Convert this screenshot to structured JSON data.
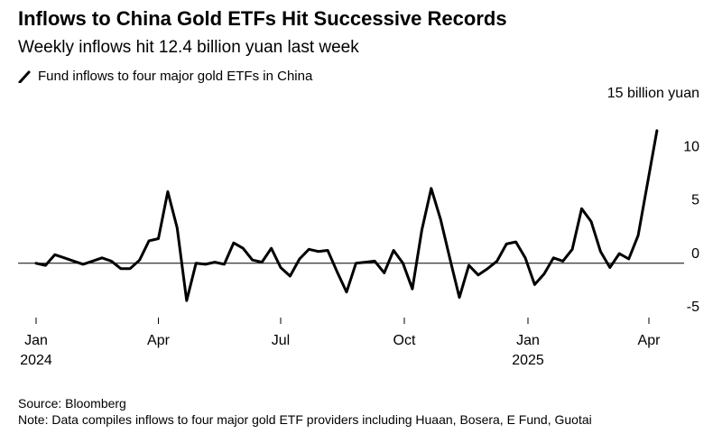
{
  "title": "Inflows to China Gold ETFs Hit Successive Records",
  "subtitle": "Weekly inflows hit 12.4 billion yuan last week",
  "legend": {
    "label": "Fund inflows to four major gold ETFs in China"
  },
  "footer": {
    "source": "Source: Bloomberg",
    "note": "Note: Data compiles inflows to four major gold ETF providers including Huaan, Bosera, E Fund, Guotai"
  },
  "chart_data": {
    "type": "line",
    "title": "Inflows to China Gold ETFs Hit Successive Records",
    "subtitle": "Weekly inflows hit 12.4 billion yuan last week",
    "ylabel": "",
    "y_unit_label": "15 billion yuan",
    "ylim": [
      -5,
      15
    ],
    "y_ticks": [
      15,
      10,
      5,
      0,
      -5
    ],
    "y_tick_labels": [
      "15 billion yuan",
      "10",
      "5",
      "0",
      "-5"
    ],
    "x_ticks": [
      {
        "date": "2024-01-01",
        "label": "Jan",
        "sublabel": "2024"
      },
      {
        "date": "2024-04-01",
        "label": "Apr",
        "sublabel": ""
      },
      {
        "date": "2024-07-01",
        "label": "Jul",
        "sublabel": ""
      },
      {
        "date": "2024-10-01",
        "label": "Oct",
        "sublabel": ""
      },
      {
        "date": "2025-01-01",
        "label": "Jan",
        "sublabel": "2025"
      },
      {
        "date": "2025-04-01",
        "label": "Apr",
        "sublabel": ""
      }
    ],
    "grid": false,
    "zero_line": true,
    "line_color": "#000000",
    "series": [
      {
        "name": "Fund inflows to four major gold ETFs in China",
        "points": [
          {
            "x": "2024-01-01",
            "y": 0.0
          },
          {
            "x": "2024-01-08",
            "y": -0.2
          },
          {
            "x": "2024-01-15",
            "y": 0.8
          },
          {
            "x": "2024-01-22",
            "y": 0.5
          },
          {
            "x": "2024-01-29",
            "y": 0.2
          },
          {
            "x": "2024-02-05",
            "y": -0.1
          },
          {
            "x": "2024-02-12",
            "y": 0.2
          },
          {
            "x": "2024-02-19",
            "y": 0.5
          },
          {
            "x": "2024-02-26",
            "y": 0.2
          },
          {
            "x": "2024-03-04",
            "y": -0.5
          },
          {
            "x": "2024-03-11",
            "y": -0.5
          },
          {
            "x": "2024-03-18",
            "y": 0.3
          },
          {
            "x": "2024-03-25",
            "y": 2.1
          },
          {
            "x": "2024-04-01",
            "y": 2.3
          },
          {
            "x": "2024-04-08",
            "y": 6.7
          },
          {
            "x": "2024-04-15",
            "y": 3.3
          },
          {
            "x": "2024-04-22",
            "y": -3.5
          },
          {
            "x": "2024-04-29",
            "y": 0.0
          },
          {
            "x": "2024-05-06",
            "y": -0.1
          },
          {
            "x": "2024-05-13",
            "y": 0.1
          },
          {
            "x": "2024-05-20",
            "y": -0.1
          },
          {
            "x": "2024-05-27",
            "y": 1.9
          },
          {
            "x": "2024-06-03",
            "y": 1.4
          },
          {
            "x": "2024-06-10",
            "y": 0.3
          },
          {
            "x": "2024-06-17",
            "y": 0.1
          },
          {
            "x": "2024-06-24",
            "y": 1.4
          },
          {
            "x": "2024-07-01",
            "y": -0.4
          },
          {
            "x": "2024-07-08",
            "y": -1.2
          },
          {
            "x": "2024-07-15",
            "y": 0.4
          },
          {
            "x": "2024-07-22",
            "y": 1.3
          },
          {
            "x": "2024-07-29",
            "y": 1.1
          },
          {
            "x": "2024-08-05",
            "y": 1.2
          },
          {
            "x": "2024-08-12",
            "y": -0.8
          },
          {
            "x": "2024-08-19",
            "y": -2.7
          },
          {
            "x": "2024-08-26",
            "y": 0.0
          },
          {
            "x": "2024-09-02",
            "y": 0.1
          },
          {
            "x": "2024-09-09",
            "y": 0.2
          },
          {
            "x": "2024-09-16",
            "y": -0.9
          },
          {
            "x": "2024-09-23",
            "y": 1.2
          },
          {
            "x": "2024-09-30",
            "y": 0.0
          },
          {
            "x": "2024-10-07",
            "y": -2.4
          },
          {
            "x": "2024-10-14",
            "y": 3.1
          },
          {
            "x": "2024-10-21",
            "y": 7.0
          },
          {
            "x": "2024-10-28",
            "y": 4.1
          },
          {
            "x": "2024-11-04",
            "y": 0.4
          },
          {
            "x": "2024-11-11",
            "y": -3.2
          },
          {
            "x": "2024-11-18",
            "y": -0.2
          },
          {
            "x": "2024-11-25",
            "y": -1.1
          },
          {
            "x": "2024-12-02",
            "y": -0.5
          },
          {
            "x": "2024-12-09",
            "y": 0.2
          },
          {
            "x": "2024-12-16",
            "y": 1.8
          },
          {
            "x": "2024-12-23",
            "y": 2.0
          },
          {
            "x": "2024-12-30",
            "y": 0.5
          },
          {
            "x": "2025-01-06",
            "y": -2.0
          },
          {
            "x": "2025-01-13",
            "y": -1.0
          },
          {
            "x": "2025-01-20",
            "y": 0.5
          },
          {
            "x": "2025-01-27",
            "y": 0.2
          },
          {
            "x": "2025-02-03",
            "y": 1.3
          },
          {
            "x": "2025-02-10",
            "y": 5.1
          },
          {
            "x": "2025-02-17",
            "y": 3.9
          },
          {
            "x": "2025-02-24",
            "y": 1.1
          },
          {
            "x": "2025-03-03",
            "y": -0.4
          },
          {
            "x": "2025-03-10",
            "y": 0.9
          },
          {
            "x": "2025-03-17",
            "y": 0.4
          },
          {
            "x": "2025-03-24",
            "y": 2.6
          },
          {
            "x": "2025-03-31",
            "y": 7.5
          },
          {
            "x": "2025-04-07",
            "y": 12.4
          }
        ]
      }
    ]
  }
}
